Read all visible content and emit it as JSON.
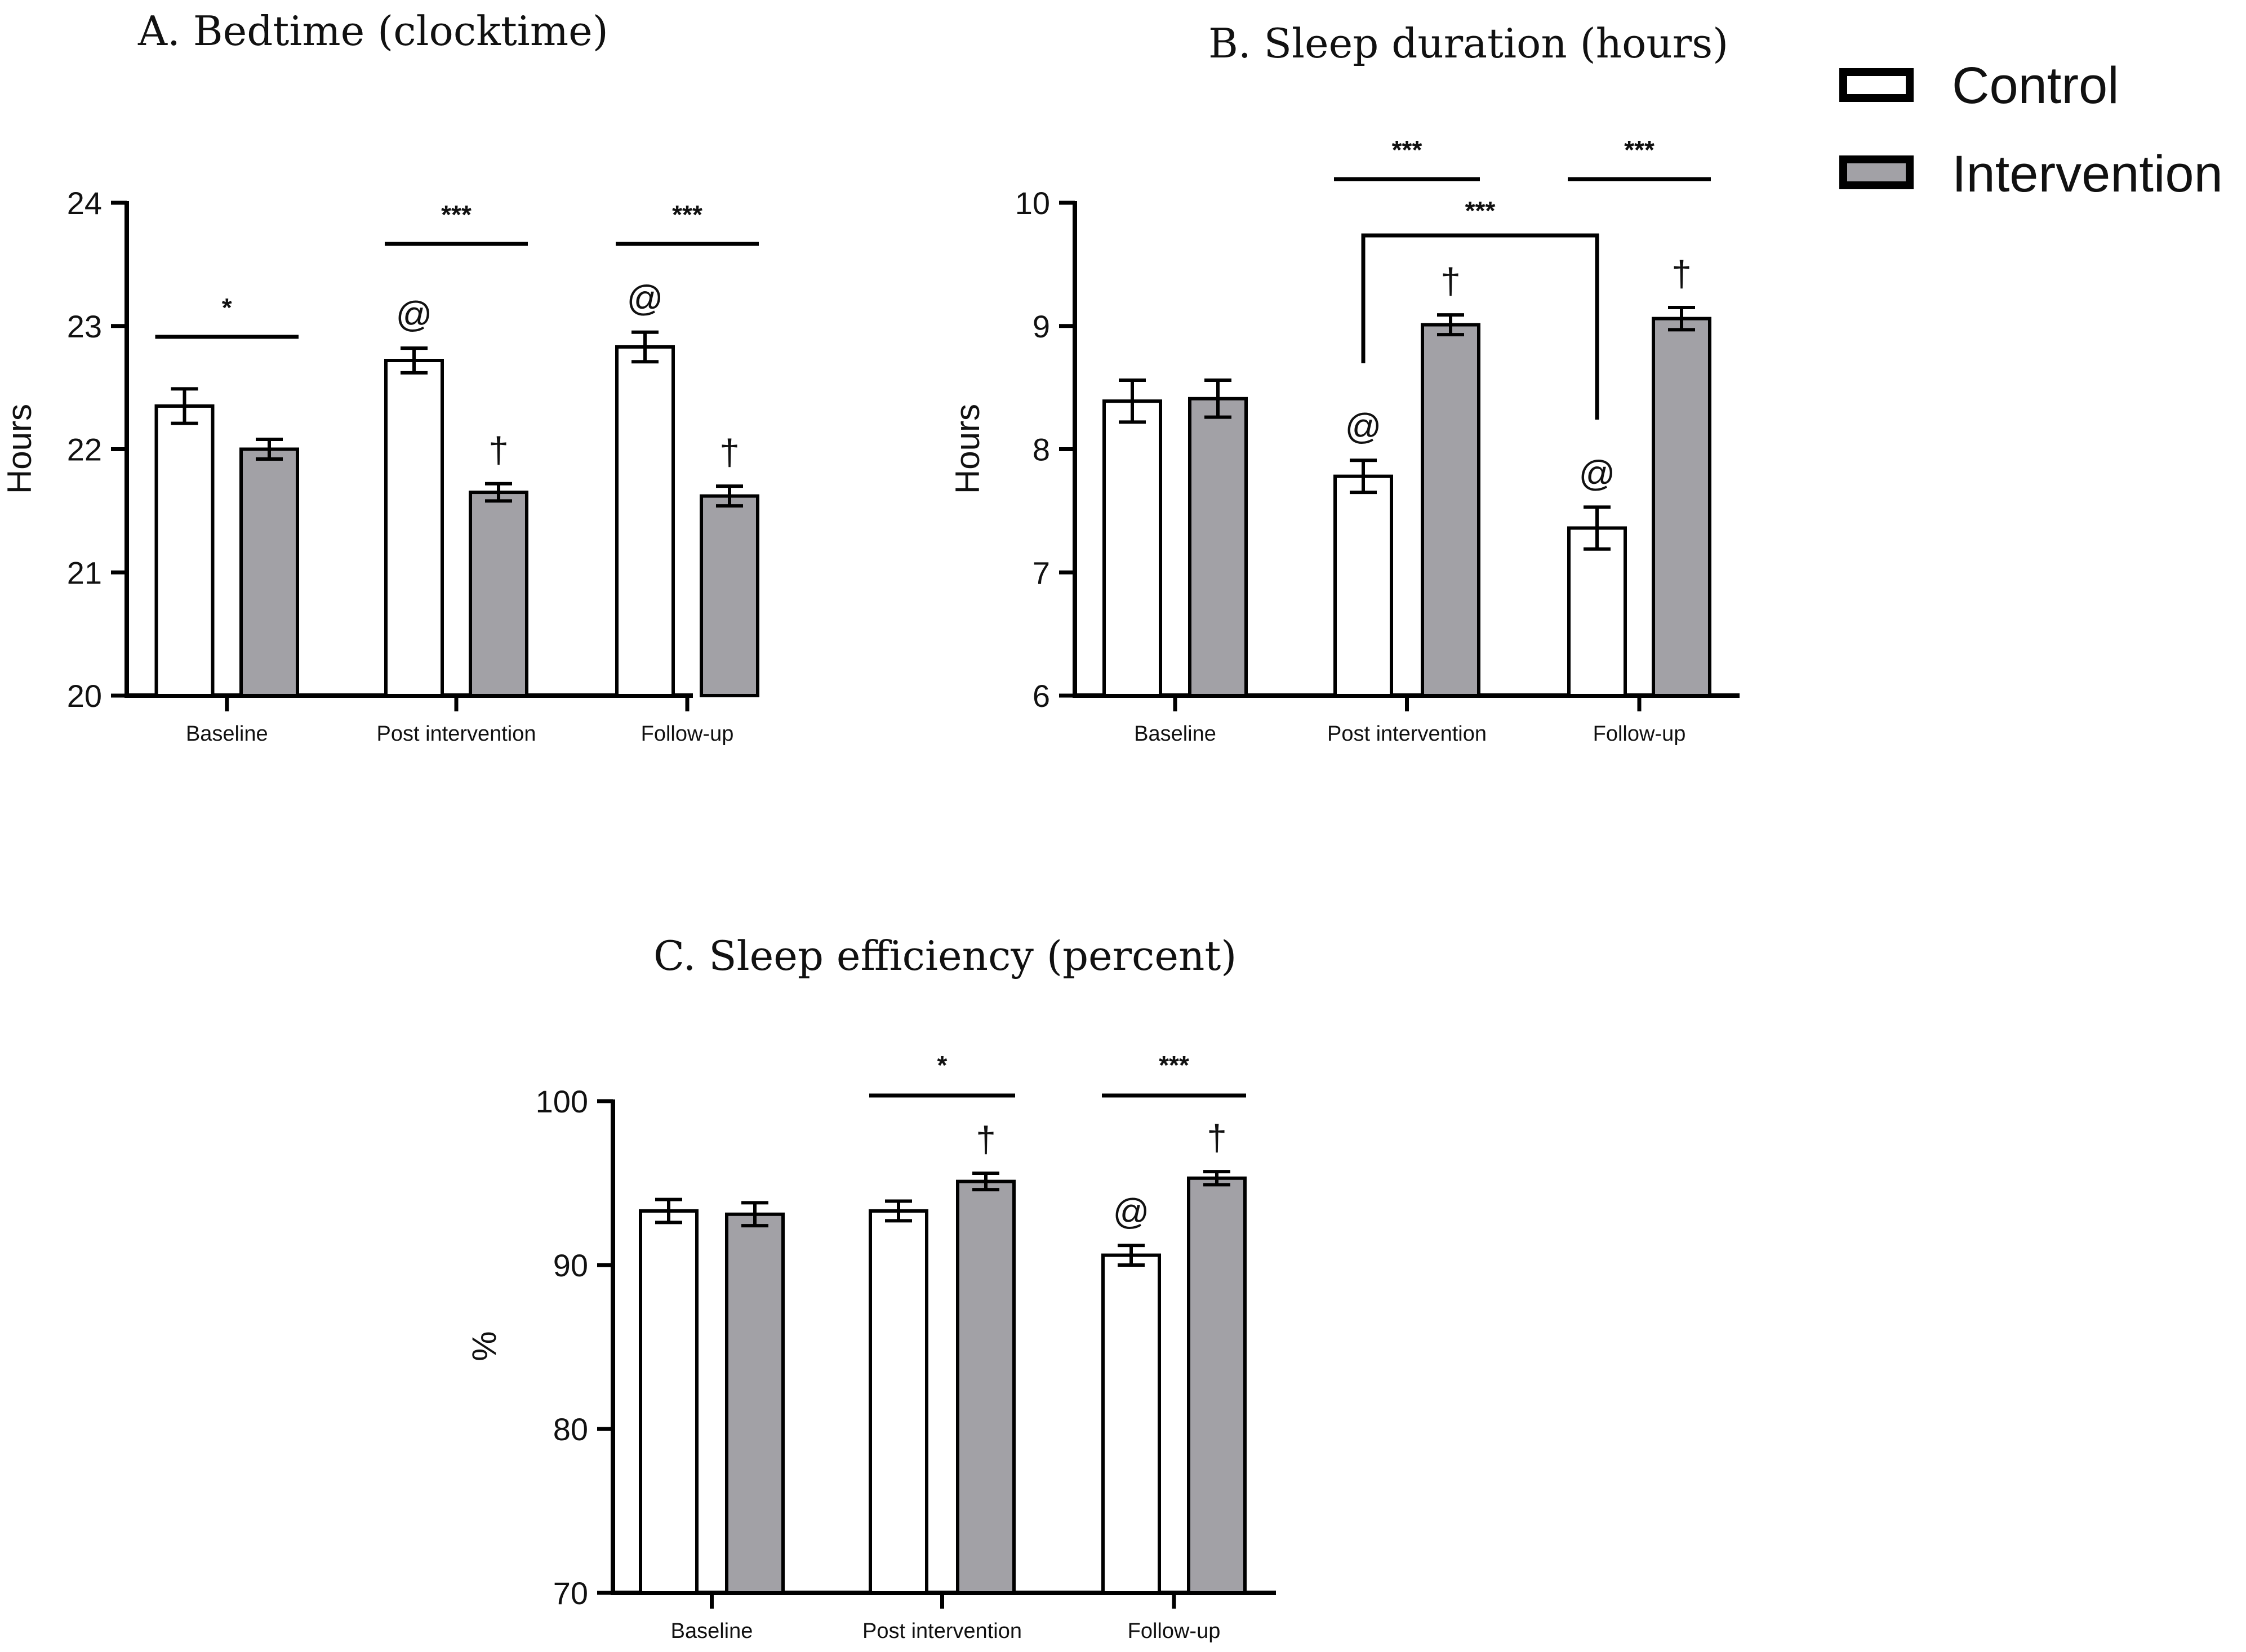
{
  "legend": {
    "entries": [
      {
        "name": "Control",
        "color": "#ffffff"
      },
      {
        "name": "Intervention",
        "color": "#a2a1a6"
      }
    ]
  },
  "chart_data": [
    {
      "id": "A",
      "type": "bar",
      "title": "A. Bedtime (clocktime)",
      "ylabel": "Hours",
      "xlabel": "",
      "ylim": [
        20,
        24
      ],
      "yticks": [
        20,
        21,
        22,
        23,
        24
      ],
      "categories": [
        "Baseline",
        "Post intervention",
        "Follow-up"
      ],
      "series": [
        {
          "name": "Control",
          "values": [
            22.35,
            22.72,
            22.83
          ],
          "errors": [
            0.14,
            0.1,
            0.12
          ],
          "marks": [
            "",
            "@",
            "@"
          ]
        },
        {
          "name": "Intervention",
          "values": [
            22.0,
            21.65,
            21.62
          ],
          "errors": [
            0.08,
            0.07,
            0.08
          ],
          "marks": [
            "",
            "†",
            "†"
          ]
        }
      ],
      "brackets": [
        {
          "type": "line",
          "cat": 0,
          "text": "*"
        },
        {
          "type": "line",
          "cat": 1,
          "text": "***"
        },
        {
          "type": "line",
          "cat": 2,
          "text": "***"
        }
      ]
    },
    {
      "id": "B",
      "type": "bar",
      "title": "B. Sleep duration (hours)",
      "ylabel": "Hours",
      "xlabel": "",
      "ylim": [
        6,
        10
      ],
      "yticks": [
        6,
        7,
        8,
        9,
        10
      ],
      "categories": [
        "Baseline",
        "Post intervention",
        "Follow-up"
      ],
      "series": [
        {
          "name": "Control",
          "values": [
            8.39,
            7.78,
            7.36
          ],
          "errors": [
            0.17,
            0.13,
            0.17
          ],
          "marks": [
            "",
            "@",
            "@"
          ]
        },
        {
          "name": "Intervention",
          "values": [
            8.41,
            9.01,
            9.06
          ],
          "errors": [
            0.15,
            0.08,
            0.09
          ],
          "marks": [
            "",
            "†",
            "†"
          ]
        }
      ],
      "brackets": [
        {
          "type": "line",
          "cat": 1,
          "text": "***"
        },
        {
          "type": "line",
          "cat": 2,
          "text": "***"
        },
        {
          "type": "span",
          "from": 1,
          "to": 2,
          "text": "***"
        }
      ]
    },
    {
      "id": "C",
      "type": "bar",
      "title": "C. Sleep efficiency (percent)",
      "ylabel": "%",
      "xlabel": "",
      "ylim": [
        70,
        100
      ],
      "yticks": [
        70,
        80,
        90,
        100
      ],
      "categories": [
        "Baseline",
        "Post intervention",
        "Follow-up"
      ],
      "series": [
        {
          "name": "Control",
          "values": [
            93.3,
            93.3,
            90.6
          ],
          "errors": [
            0.7,
            0.6,
            0.6
          ],
          "marks": [
            "",
            "",
            "@"
          ]
        },
        {
          "name": "Intervention",
          "values": [
            93.1,
            95.1,
            95.3
          ],
          "errors": [
            0.7,
            0.5,
            0.4
          ],
          "marks": [
            "",
            "†",
            "†"
          ]
        }
      ],
      "brackets": [
        {
          "type": "line",
          "cat": 1,
          "text": "*"
        },
        {
          "type": "line",
          "cat": 2,
          "text": "***"
        }
      ]
    }
  ]
}
